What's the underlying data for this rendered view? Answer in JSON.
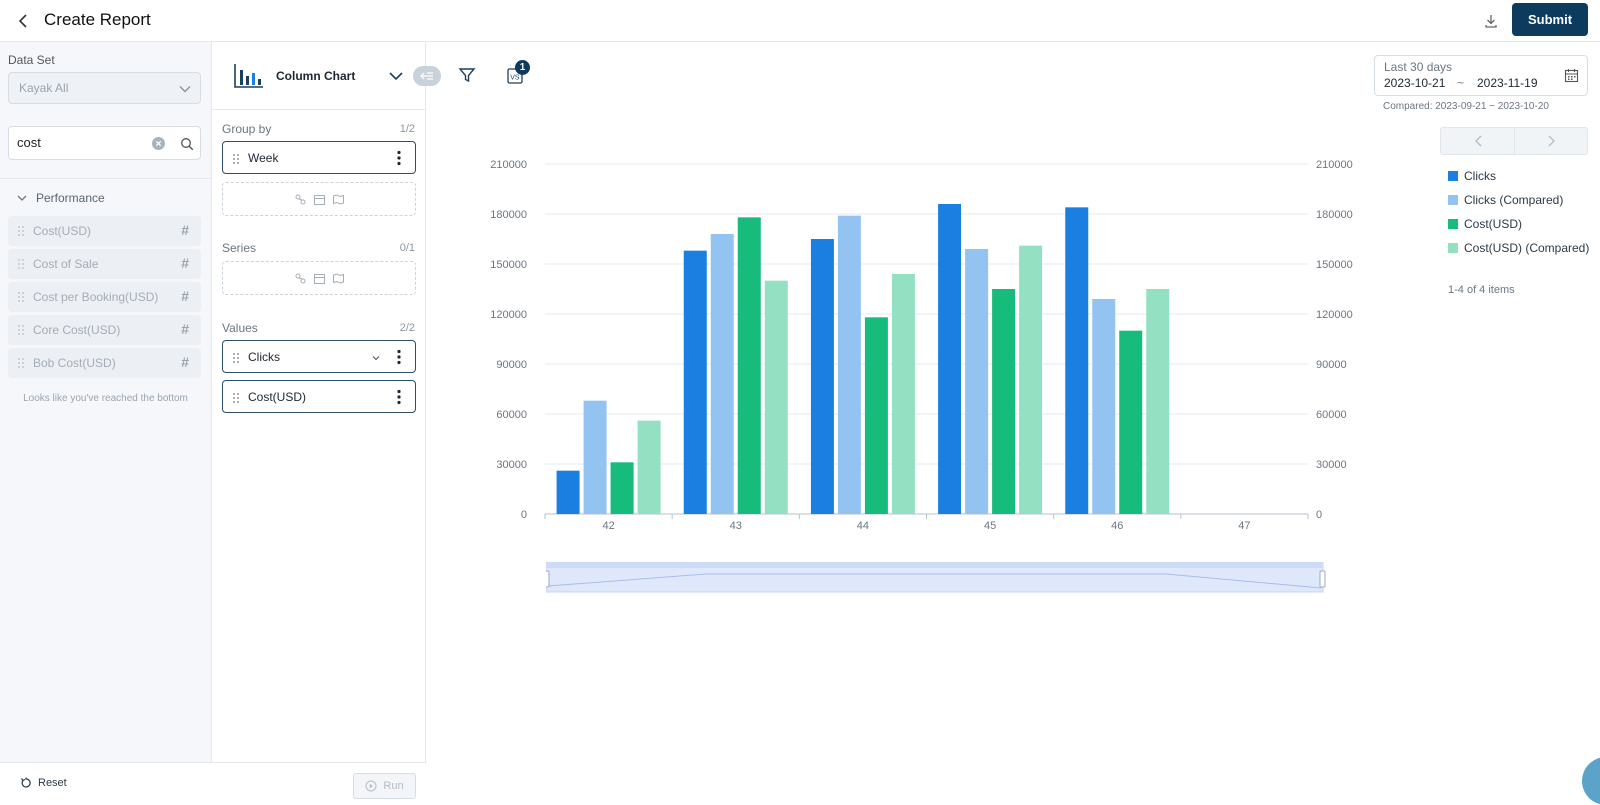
{
  "header": {
    "title": "Create Report",
    "submit_label": "Submit"
  },
  "left_panel": {
    "dataset_label": "Data Set",
    "dataset_value": "Kayak All",
    "search_value": "cost",
    "group_label": "Performance",
    "fields": [
      {
        "label": "Cost(USD)"
      },
      {
        "label": "Cost of Sale"
      },
      {
        "label": "Cost per Booking(USD)"
      },
      {
        "label": "Core Cost(USD)"
      },
      {
        "label": "Bob Cost(USD)"
      }
    ],
    "bottom_note": "Looks like you've reached the bottom",
    "hash": "#",
    "reset_label": "Reset",
    "run_label": "Run"
  },
  "config": {
    "chart_type": "Column Chart",
    "group_by": {
      "label": "Group by",
      "count": "1/2",
      "items": [
        "Week"
      ]
    },
    "series": {
      "label": "Series",
      "count": "0/1"
    },
    "values": {
      "label": "Values",
      "count": "2/2",
      "items": [
        "Clicks",
        "Cost(USD)"
      ]
    }
  },
  "toolbar": {
    "vs_badge": "1"
  },
  "date_range": {
    "preset": "Last 30 days",
    "start": "2023-10-21",
    "sep": "~",
    "end": "2023-11-19",
    "compared": "Compared: 2023-09-21 ~ 2023-10-20"
  },
  "legend": {
    "items": [
      {
        "label": "Clicks",
        "color": "#1a7fe0"
      },
      {
        "label": "Clicks (Compared)",
        "color": "#93c3f0"
      },
      {
        "label": "Cost(USD)",
        "color": "#17bc7c"
      },
      {
        "label": "Cost(USD) (Compared)",
        "color": "#94e0c2"
      }
    ],
    "count_text": "1-4 of 4 items"
  },
  "chart_data": {
    "type": "bar",
    "categories": [
      "42",
      "43",
      "44",
      "45",
      "46",
      "47"
    ],
    "series": [
      {
        "name": "Clicks",
        "color": "#1a7fe0",
        "values": [
          26000,
          158000,
          165000,
          186000,
          184000,
          0
        ]
      },
      {
        "name": "Clicks (Compared)",
        "color": "#93c3f0",
        "values": [
          68000,
          168000,
          179000,
          159000,
          129000,
          0
        ]
      },
      {
        "name": "Cost(USD)",
        "color": "#17bc7c",
        "values": [
          31000,
          178000,
          118000,
          135000,
          110000,
          0
        ]
      },
      {
        "name": "Cost(USD) (Compared)",
        "color": "#94e0c2",
        "values": [
          56000,
          140000,
          144000,
          161000,
          135000,
          0
        ]
      }
    ],
    "yticks": [
      "0",
      "30000",
      "60000",
      "90000",
      "120000",
      "150000",
      "180000",
      "210000"
    ],
    "ylim": [
      0,
      210000
    ],
    "grid": true,
    "legend_position": "right"
  }
}
